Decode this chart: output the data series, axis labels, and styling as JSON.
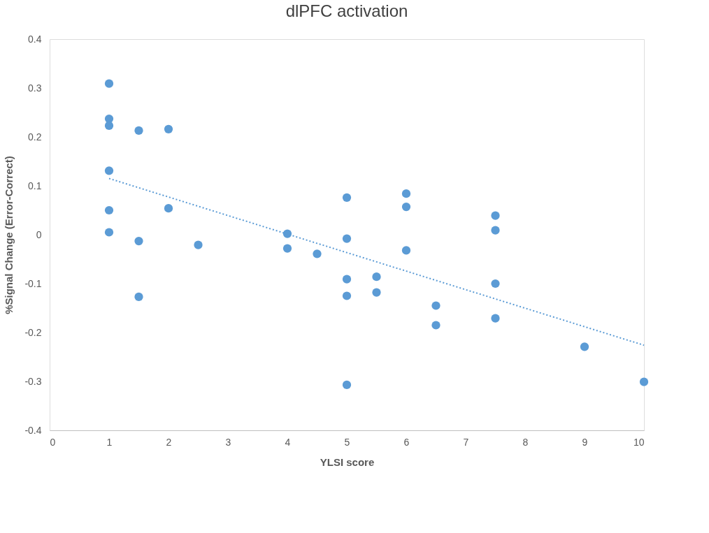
{
  "chart_data": {
    "type": "scatter",
    "title": "dlPFC activation",
    "xlabel": "YLSI score",
    "ylabel": "%Signal Change (Error-Correct)",
    "xlim": [
      0,
      10
    ],
    "xticks": [
      0,
      1,
      2,
      3,
      4,
      5,
      6,
      7,
      8,
      9,
      10
    ],
    "ylim": [
      -0.4,
      0.4
    ],
    "yticks": [
      -0.4,
      -0.3,
      -0.2,
      -0.1,
      0,
      0.1,
      0.2,
      0.3,
      0.4
    ],
    "grid": false,
    "marker": "circle",
    "series": [
      {
        "color": "#5b9bd5",
        "x": [
          1,
          1,
          1,
          1,
          1,
          1,
          1.5,
          1.5,
          1.5,
          2,
          2,
          2.5,
          4,
          4,
          4.5,
          5,
          5,
          5,
          5,
          5,
          5.5,
          5.5,
          6,
          6,
          6,
          6.5,
          6.5,
          7.5,
          7.5,
          7.5,
          7.5,
          9,
          10
        ],
        "values": [
          0.309,
          0.237,
          0.223,
          0.131,
          0.05,
          0.005,
          0.213,
          -0.013,
          -0.127,
          0.216,
          0.054,
          -0.021,
          0.002,
          -0.028,
          -0.039,
          0.076,
          -0.008,
          -0.091,
          -0.125,
          -0.307,
          -0.086,
          -0.118,
          0.084,
          0.057,
          -0.032,
          -0.145,
          -0.185,
          0.039,
          0.009,
          -0.1,
          -0.171,
          -0.229,
          -0.301
        ]
      },
      {
        "type": "line",
        "color": "#5b9bd5",
        "line_style": "dotted",
        "marker": "none",
        "x": [
          1,
          10
        ],
        "values": [
          0.115,
          -0.226
        ]
      }
    ]
  }
}
